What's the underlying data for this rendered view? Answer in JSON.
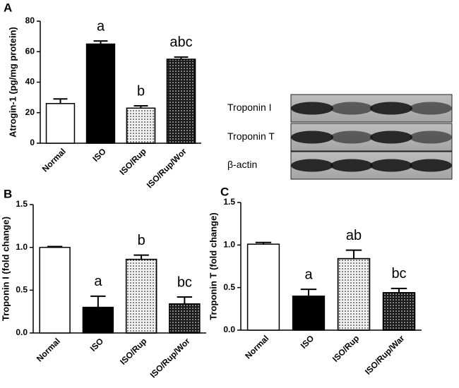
{
  "chart_data": [
    {
      "type": "bar",
      "panel": "A",
      "ylabel": "Atrogin-1 (pg/mg protein)",
      "categories": [
        "Normal",
        "ISO",
        "ISO/Rup",
        "ISO/Rup/Wor"
      ],
      "values": [
        26,
        65,
        23,
        55
      ],
      "errors": [
        3,
        2,
        1.5,
        1.5
      ],
      "annotations": [
        null,
        "a",
        "b",
        "abc"
      ],
      "colors": [
        "#ffffff",
        "#000000",
        "#f2f2f2",
        "#1c1c1c"
      ],
      "ylim": [
        0,
        80
      ],
      "yticks": [
        0,
        20,
        40,
        60,
        80
      ]
    },
    {
      "type": "bar",
      "panel": "B",
      "ylabel": "Troponin I (fold change)",
      "categories": [
        "Normal",
        "ISO",
        "ISO/Rup",
        "ISO/Rup/Wor"
      ],
      "values": [
        1.0,
        0.3,
        0.86,
        0.34
      ],
      "errors": [
        0.01,
        0.13,
        0.05,
        0.08
      ],
      "annotations": [
        null,
        "a",
        "b",
        "bc"
      ],
      "colors": [
        "#ffffff",
        "#000000",
        "#f2f2f2",
        "#1c1c1c"
      ],
      "ylim": [
        0,
        1.5
      ],
      "yticks": [
        {
          "value": 0,
          "label": "0.0"
        },
        0.5,
        {
          "value": 1,
          "label": "1.0"
        },
        1.5
      ]
    },
    {
      "type": "bar",
      "panel": "C",
      "ylabel": "Troponin T (fold change)",
      "categories": [
        "Normal",
        "ISO",
        "ISO/Rup",
        "ISO/Rup/War"
      ],
      "values": [
        1.01,
        0.4,
        0.84,
        0.44
      ],
      "errors": [
        0.02,
        0.08,
        0.1,
        0.05
      ],
      "annotations": [
        null,
        "a",
        "ab",
        "bc"
      ],
      "colors": [
        "#ffffff",
        "#000000",
        "#f2f2f2",
        "#1c1c1c"
      ],
      "ylim": [
        0,
        1.5
      ],
      "yticks": [
        {
          "value": 0,
          "label": "0.0"
        },
        0.5,
        {
          "value": 1,
          "label": "1.0"
        },
        1.5
      ]
    }
  ],
  "blot": {
    "rows": [
      "Troponin I",
      "Troponin T",
      "β-actin"
    ]
  }
}
